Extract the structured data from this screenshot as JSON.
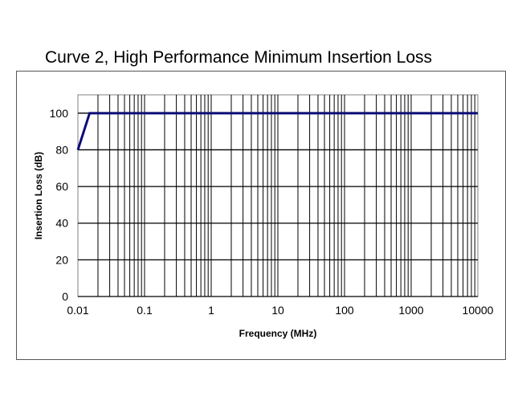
{
  "chart_data": {
    "type": "line",
    "title": "Curve 2, High Performance Minimum Insertion Loss",
    "xlabel": "Frequency (MHz)",
    "ylabel": "Insertion Loss (dB)",
    "x_scale": "log",
    "xlim": [
      0.01,
      10000
    ],
    "ylim": [
      0,
      110
    ],
    "x_ticks": [
      "0.01",
      "0.1",
      "1",
      "10",
      "100",
      "1000",
      "10000"
    ],
    "y_ticks": [
      "0",
      "20",
      "40",
      "60",
      "80",
      "100"
    ],
    "grid": true,
    "legend": "none",
    "series": [
      {
        "color": "#0a0a78",
        "x": [
          0.01,
          0.015,
          10000
        ],
        "y": [
          80,
          100,
          100
        ]
      }
    ]
  }
}
